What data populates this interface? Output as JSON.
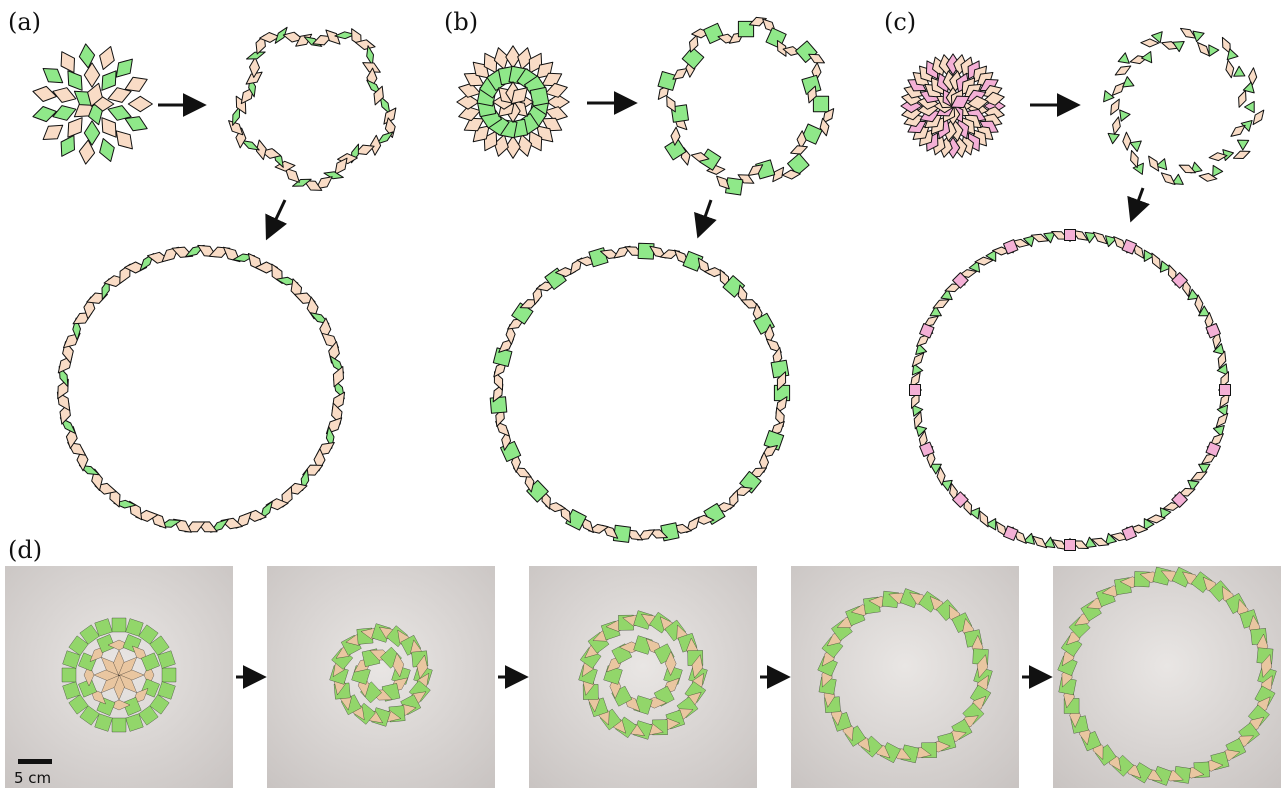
{
  "panels": {
    "a": {
      "label": "(a)"
    },
    "b": {
      "label": "(b)"
    },
    "c": {
      "label": "(c)"
    },
    "d": {
      "label": "(d)"
    }
  },
  "scale_bar": {
    "label": "5 cm"
  },
  "colors": {
    "tan": "#f9dcc6",
    "green": "#8fe889",
    "pink": "#f4b0d6",
    "photo_green": "#92d66a",
    "photo_tan": "#e9c6a0",
    "photo_bg": "#d8d4d2",
    "stroke": "#111111"
  }
}
